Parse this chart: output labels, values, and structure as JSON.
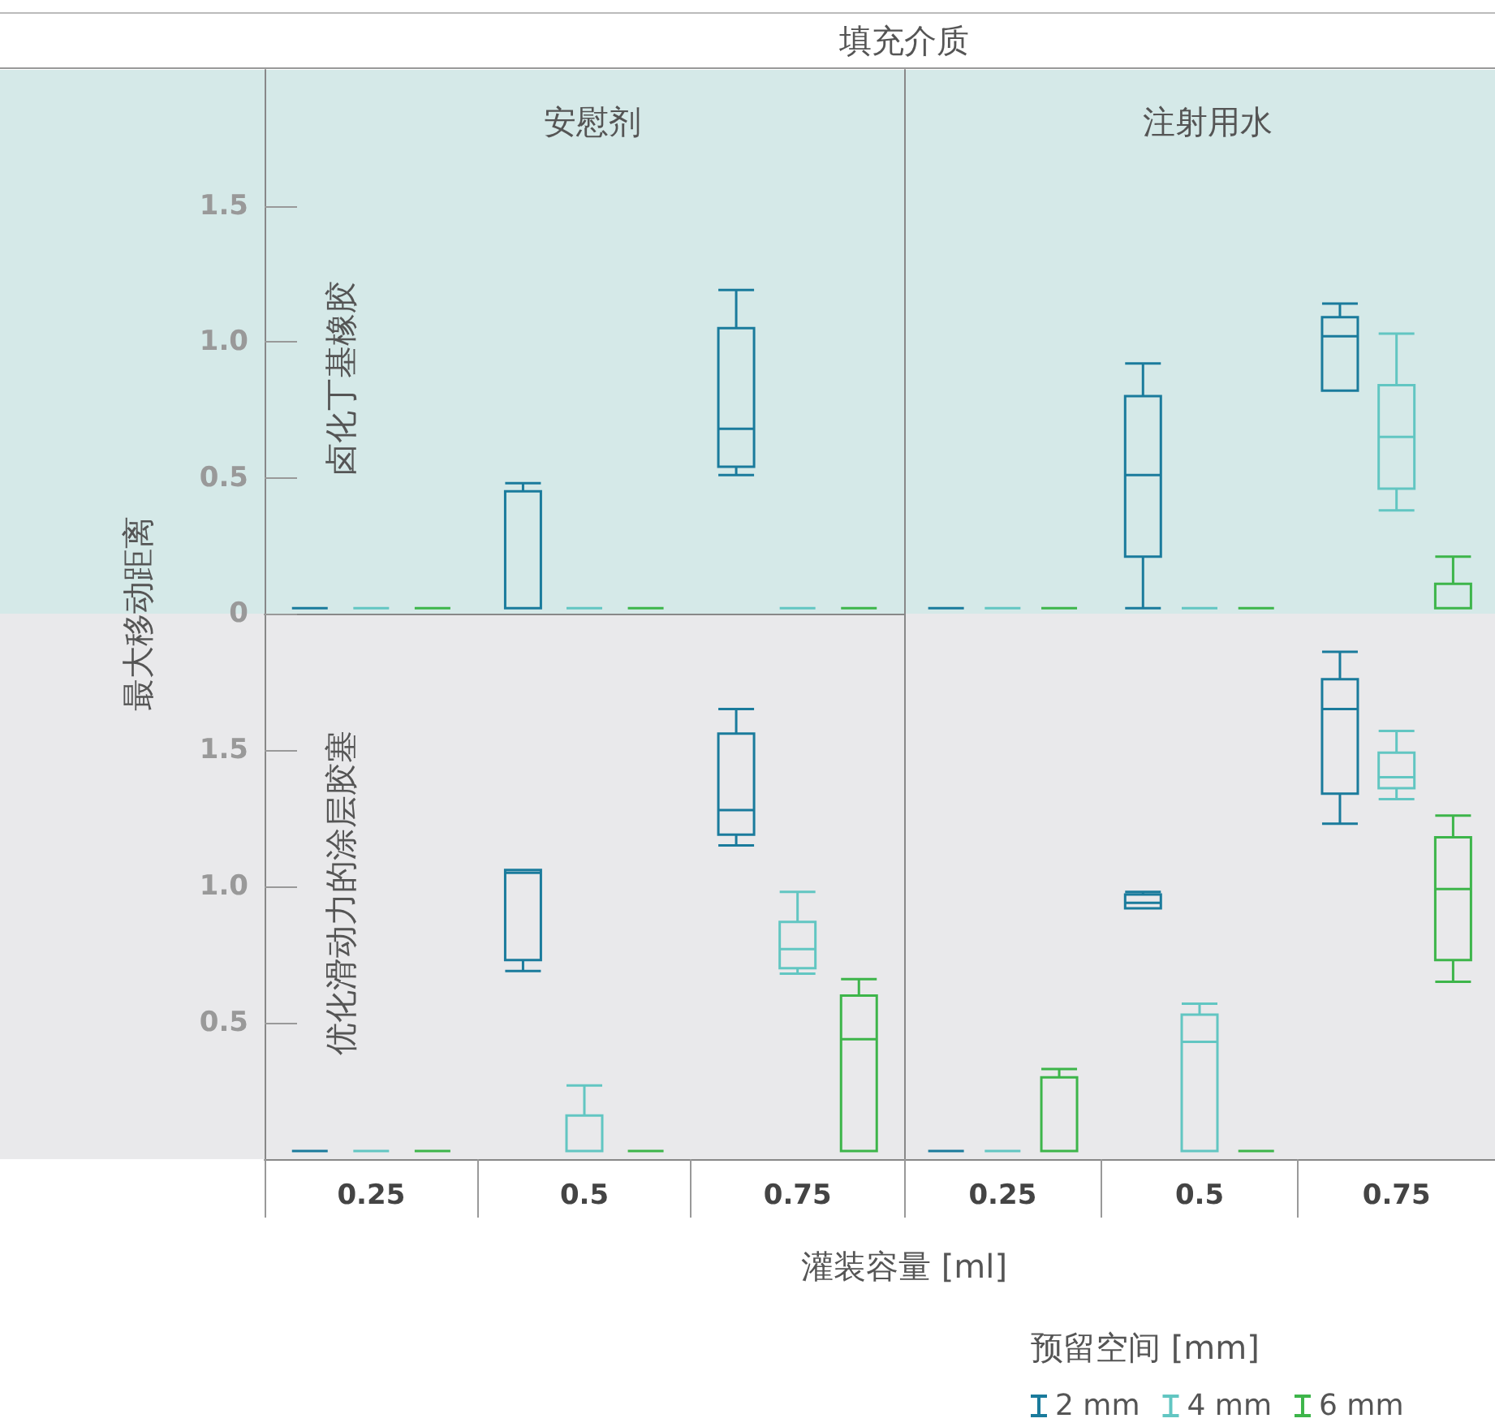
{
  "chart_data": [
    {
      "type": "box",
      "title": "安慰剂",
      "annotations": [
        "填充介质"
      ],
      "subtitle": "卤化丁基橡胶",
      "ylabel": "最大移动距离",
      "categories": [
        "0.25",
        "0.5",
        "0.75"
      ],
      "ylim": [
        0,
        2
      ],
      "yticks": [
        0,
        0.5,
        {
          "value": 1,
          "label": "1.0"
        },
        1.5
      ],
      "tick_labels": "y",
      "series": [
        {
          "color": "#1a7b9c",
          "boxes": [
            {
              "low": 0.02,
              "q1": 0.02,
              "median": 0.02,
              "q3": 0.02,
              "high": 0.02
            },
            {
              "low": 0.02,
              "q1": 0.02,
              "median": 0.02,
              "q3": 0.45,
              "high": 0.48
            },
            {
              "low": 0.51,
              "q1": 0.54,
              "median": 0.68,
              "q3": 1.05,
              "high": 1.19
            }
          ]
        },
        {
          "color": "#62c6c2",
          "boxes": [
            {
              "low": 0.02,
              "q1": 0.02,
              "median": 0.02,
              "q3": 0.02,
              "high": 0.02
            },
            {
              "low": 0.02,
              "q1": 0.02,
              "median": 0.02,
              "q3": 0.02,
              "high": 0.02
            },
            {
              "low": 0.02,
              "q1": 0.02,
              "median": 0.02,
              "q3": 0.02,
              "high": 0.02
            }
          ]
        },
        {
          "color": "#3db54a",
          "boxes": [
            {
              "low": 0.02,
              "q1": 0.02,
              "median": 0.02,
              "q3": 0.02,
              "high": 0.02
            },
            {
              "low": 0.02,
              "q1": 0.02,
              "median": 0.02,
              "q3": 0.02,
              "high": 0.02
            },
            {
              "low": 0.02,
              "q1": 0.02,
              "median": 0.02,
              "q3": 0.02,
              "high": 0.02
            }
          ]
        }
      ]
    },
    {
      "type": "box",
      "title": "注射用水",
      "categories": [
        "0.25",
        "0.5",
        "0.75"
      ],
      "ylim": [
        0,
        2
      ],
      "tick_labels": false,
      "series": [
        {
          "color": "#1a7b9c",
          "boxes": [
            {
              "low": 0.02,
              "q1": 0.02,
              "median": 0.02,
              "q3": 0.02,
              "high": 0.02
            },
            {
              "low": 0.02,
              "q1": 0.21,
              "median": 0.51,
              "q3": 0.8,
              "high": 0.92
            },
            {
              "low": 0.82,
              "q1": 0.82,
              "median": 1.02,
              "q3": 1.09,
              "high": 1.14
            }
          ]
        },
        {
          "color": "#62c6c2",
          "boxes": [
            {
              "low": 0.02,
              "q1": 0.02,
              "median": 0.02,
              "q3": 0.02,
              "high": 0.02
            },
            {
              "low": 0.02,
              "q1": 0.02,
              "median": 0.02,
              "q3": 0.02,
              "high": 0.02
            },
            {
              "low": 0.38,
              "q1": 0.46,
              "median": 0.65,
              "q3": 0.84,
              "high": 1.03
            }
          ]
        },
        {
          "color": "#3db54a",
          "boxes": [
            {
              "low": 0.02,
              "q1": 0.02,
              "median": 0.02,
              "q3": 0.02,
              "high": 0.02
            },
            {
              "low": 0.02,
              "q1": 0.02,
              "median": 0.02,
              "q3": 0.02,
              "high": 0.02
            },
            {
              "low": 0.02,
              "q1": 0.02,
              "median": 0.02,
              "q3": 0.11,
              "high": 0.21
            }
          ]
        }
      ]
    },
    {
      "type": "box",
      "subtitle": "优化滑动力的涂层胶塞",
      "xlabel": "灌装容量 [ml]",
      "categories": [
        "0.25",
        "0.5",
        "0.75"
      ],
      "ylim": [
        0,
        2
      ],
      "yticks": [
        0.5,
        {
          "value": 1,
          "label": "1.0"
        },
        1.5
      ],
      "series": [
        {
          "color": "#1a7b9c",
          "boxes": [
            {
              "low": 0.03,
              "q1": 0.03,
              "median": 0.03,
              "q3": 0.03,
              "high": 0.03
            },
            {
              "low": 0.69,
              "q1": 0.73,
              "median": 1.05,
              "q3": 1.06,
              "high": 1.06
            },
            {
              "low": 1.15,
              "q1": 1.19,
              "median": 1.28,
              "q3": 1.56,
              "high": 1.65
            }
          ]
        },
        {
          "color": "#62c6c2",
          "boxes": [
            {
              "low": 0.03,
              "q1": 0.03,
              "median": 0.03,
              "q3": 0.03,
              "high": 0.03
            },
            {
              "low": 0.03,
              "q1": 0.03,
              "median": 0.03,
              "q3": 0.16,
              "high": 0.27
            },
            {
              "low": 0.68,
              "q1": 0.7,
              "median": 0.77,
              "q3": 0.87,
              "high": 0.98
            }
          ]
        },
        {
          "color": "#3db54a",
          "boxes": [
            {
              "low": 0.03,
              "q1": 0.03,
              "median": 0.03,
              "q3": 0.03,
              "high": 0.03
            },
            {
              "low": 0.03,
              "q1": 0.03,
              "median": 0.03,
              "q3": 0.03,
              "high": 0.03
            },
            {
              "low": 0.03,
              "q1": 0.03,
              "median": 0.44,
              "q3": 0.6,
              "high": 0.66
            }
          ]
        }
      ]
    },
    {
      "type": "box",
      "legend": "bottom right",
      "legend_title": "预留空间 [mm]",
      "categories": [
        "0.25",
        "0.5",
        "0.75"
      ],
      "ylim": [
        0,
        2
      ],
      "tick_labels": "x",
      "series": [
        {
          "name": "2 mm",
          "color": "#1a7b9c",
          "boxes": [
            {
              "low": 0.03,
              "q1": 0.03,
              "median": 0.03,
              "q3": 0.03,
              "high": 0.03
            },
            {
              "low": 0.92,
              "q1": 0.92,
              "median": 0.94,
              "q3": 0.97,
              "high": 0.98
            },
            {
              "low": 1.23,
              "q1": 1.34,
              "median": 1.65,
              "q3": 1.76,
              "high": 1.86
            }
          ]
        },
        {
          "name": "4 mm",
          "color": "#62c6c2",
          "boxes": [
            {
              "low": 0.03,
              "q1": 0.03,
              "median": 0.03,
              "q3": 0.03,
              "high": 0.03
            },
            {
              "low": 0.03,
              "q1": 0.03,
              "median": 0.43,
              "q3": 0.53,
              "high": 0.57
            },
            {
              "low": 1.32,
              "q1": 1.36,
              "median": 1.4,
              "q3": 1.49,
              "high": 1.57
            }
          ]
        },
        {
          "name": "6 mm",
          "color": "#3db54a",
          "boxes": [
            {
              "low": 0.03,
              "q1": 0.03,
              "median": 0.03,
              "q3": 0.3,
              "high": 0.33
            },
            {
              "low": 0.03,
              "q1": 0.03,
              "median": 0.03,
              "q3": 0.03,
              "high": 0.03
            },
            {
              "low": 0.65,
              "q1": 0.73,
              "median": 0.99,
              "q3": 1.18,
              "high": 1.26
            }
          ]
        }
      ]
    }
  ]
}
